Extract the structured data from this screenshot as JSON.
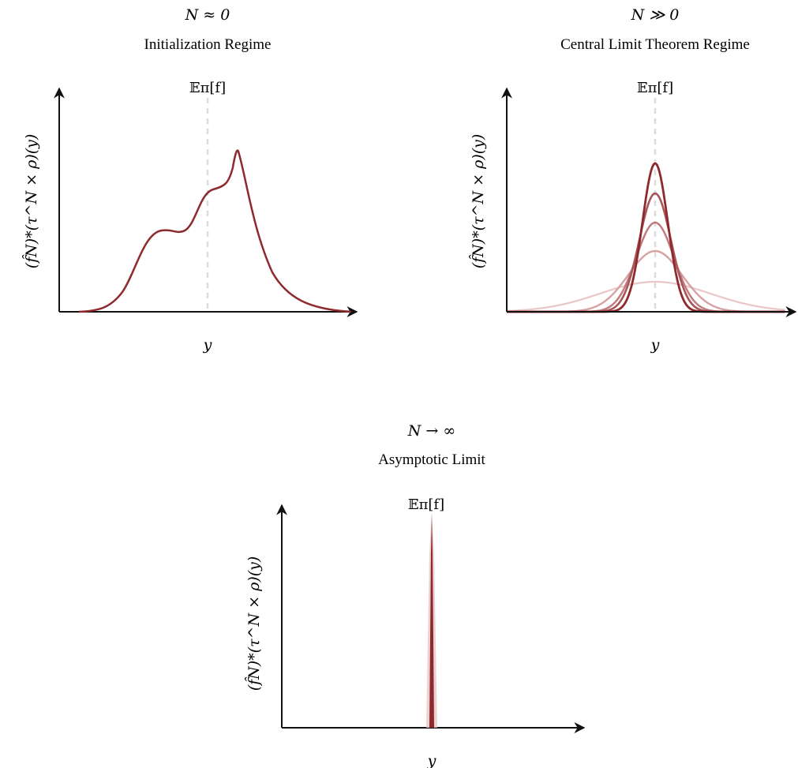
{
  "panels": [
    {
      "id": "initialization",
      "regime_symbol": "N ≈ 0",
      "regime_name": "Initialization Regime",
      "mean_label": "𝔼π[f]",
      "xlabel": "y",
      "ylabel": "(f̂N)*(τ^N × ρ)(y)",
      "curve_color": "#8e2a2d"
    },
    {
      "id": "clt",
      "regime_symbol": "N ≫ 0",
      "regime_name": "Central Limit Theorem Regime",
      "mean_label": "𝔼π[f]",
      "xlabel": "y",
      "ylabel": "(f̂N)*(τ^N × ρ)(y)",
      "curve_colors": [
        "#e9c7c8",
        "#d6a2a4",
        "#c07c7f",
        "#a8555a",
        "#8e2a2d"
      ]
    },
    {
      "id": "asymptotic",
      "regime_symbol": "N → ∞",
      "regime_name": "Asymptotic Limit",
      "mean_label": "𝔼π[f]",
      "xlabel": "y",
      "ylabel": "(f̂N)*(τ^N × ρ)(y)",
      "curve_color": "#8e2a2d"
    }
  ]
}
